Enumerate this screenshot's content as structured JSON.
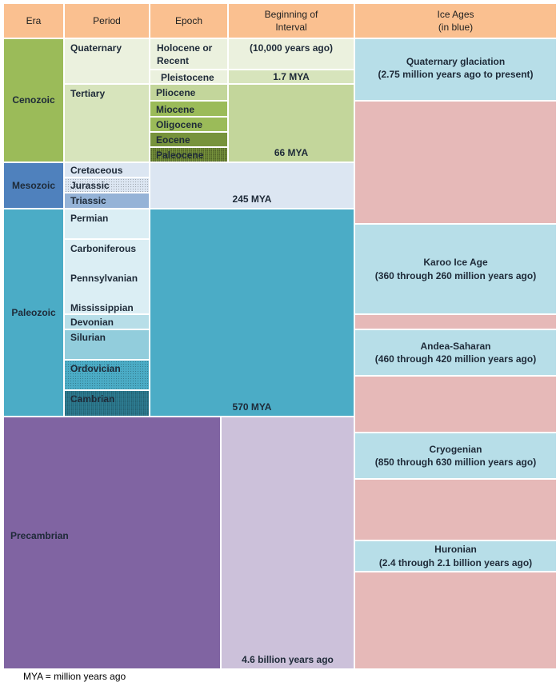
{
  "headers": {
    "era": "Era",
    "period": "Period",
    "epoch": "Epoch",
    "beginning_line1": "Beginning of",
    "beginning_line2": "Interval",
    "ice_line1": "Ice Ages",
    "ice_line2": "(in blue)"
  },
  "eras": {
    "cenozoic": "Cenozoic",
    "mesozoic": "Mesozoic",
    "paleozoic": "Paleozoic",
    "precambrian": "Precambrian"
  },
  "periods": {
    "quaternary": "Quaternary",
    "tertiary": "Tertiary",
    "cretaceous": "Cretaceous",
    "jurassic": "Jurassic",
    "triassic": "Triassic",
    "permian": "Permian",
    "carboniferous": "Carboniferous",
    "pennsylvanian": "Pennsylvanian",
    "mississippian": "Mississippian",
    "devonian": "Devonian",
    "silurian": "Silurian",
    "ordovician": "Ordovician",
    "cambrian": "Cambrian"
  },
  "epochs": {
    "holocene_line1": "Holocene or",
    "holocene_line2": "Recent",
    "pleistocene": "Pleistocene",
    "pliocene": "Pliocene",
    "miocene": "Miocene",
    "oligocene": "Oligocene",
    "eocene": "Eocene",
    "paleocene": "Paleocene"
  },
  "beginnings": {
    "holocene": "(10,000 years ago)",
    "pleistocene": "1.7 MYA",
    "tertiary": "66 MYA",
    "mesozoic": "245 MYA",
    "paleozoic": "570 MYA",
    "precambrian": "4.6 billion years ago"
  },
  "ice_ages": {
    "quaternary_title": "Quaternary glaciation",
    "quaternary_range": "(2.75 million years ago to present)",
    "karoo_title": "Karoo Ice Age",
    "karoo_range": "(360 through 260 million years ago)",
    "andea_title": "Andea-Saharan",
    "andea_range": "(460 through 420 million years ago)",
    "cryo_title": "Cryogenian",
    "cryo_range": "(850 through 630 million years ago)",
    "huronian_title": "Huronian",
    "huronian_range": "(2.4 through 2.1 billion years ago)"
  },
  "footnote": "MYA = million years ago",
  "colors": {
    "header": "#fac090",
    "cenozoic": "#9bbb59",
    "quaternary": "#ebf1de",
    "tertiary": "#d7e4bc",
    "epoch_light": "#c3d69b",
    "epoch_mid": "#9bbb59",
    "epoch_dark": "#77933c",
    "mesozoic": "#4f81bd",
    "mesozoic_light": "#dce6f2",
    "paleozoic": "#4bacc6",
    "paleozoic_light": "#dbeef4",
    "precambrian": "#8064a2",
    "precambrian_light": "#ccc1da",
    "ice_blue": "#b7dee8",
    "non_ice": "#e6b9b8"
  }
}
